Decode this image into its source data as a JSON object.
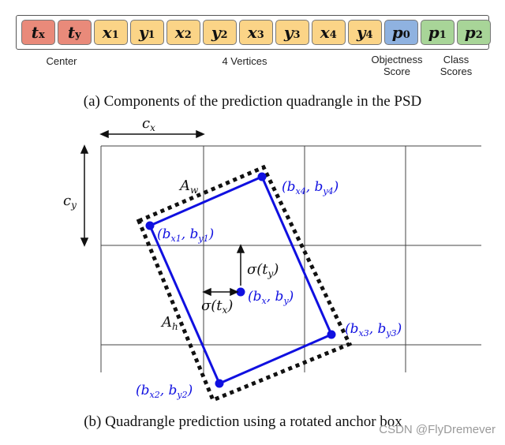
{
  "cells": [
    {
      "sym": "t",
      "sub": "x",
      "group": "center"
    },
    {
      "sym": "t",
      "sub": "y",
      "group": "center"
    },
    {
      "sym": "x",
      "sub": "1",
      "group": "vertex"
    },
    {
      "sym": "y",
      "sub": "1",
      "group": "vertex"
    },
    {
      "sym": "x",
      "sub": "2",
      "group": "vertex"
    },
    {
      "sym": "y",
      "sub": "2",
      "group": "vertex"
    },
    {
      "sym": "x",
      "sub": "3",
      "group": "vertex"
    },
    {
      "sym": "y",
      "sub": "3",
      "group": "vertex"
    },
    {
      "sym": "x",
      "sub": "4",
      "group": "vertex"
    },
    {
      "sym": "y",
      "sub": "4",
      "group": "vertex"
    },
    {
      "sym": "p",
      "sub": "0",
      "group": "objectness"
    },
    {
      "sym": "p",
      "sub": "1",
      "group": "class"
    },
    {
      "sym": "p",
      "sub": "2",
      "group": "class"
    }
  ],
  "group_labels": {
    "center": "Center",
    "vertices": "4 Vertices",
    "objectness_line1": "Objectness",
    "objectness_line2": "Score",
    "class_line1": "Class",
    "class_line2": "Scores"
  },
  "captions": {
    "a": "(a) Components of the prediction quadrangle in the PSD",
    "b": "(b) Quadrangle prediction using a rotated anchor box"
  },
  "diagram_labels": {
    "cx": "c",
    "cx_sub": "x",
    "cy": "c",
    "cy_sub": "y",
    "aw": "A",
    "aw_sub": "w",
    "ah": "A",
    "ah_sub": "h",
    "sigma_ty": "σ(t",
    "sigma_ty_sub": "y",
    "sigma_tx": "σ(t",
    "sigma_tx_sub": "x",
    "center_pt": "(b",
    "center_pt_sub1": "x",
    "center_pt_mid": ", b",
    "center_pt_sub2": "y",
    "v1_sub1": "x1",
    "v1_sub2": "y1",
    "v2_sub1": "x2",
    "v2_sub2": "y2",
    "v3_sub1": "x3",
    "v3_sub2": "y3",
    "v4_sub1": "x4",
    "v4_sub2": "y4"
  },
  "colors": {
    "center": "#e98a7a",
    "vertex": "#fbd487",
    "objectness": "#8fb2e0",
    "class": "#a8d598",
    "quad": "#1010e0"
  },
  "watermark": "CSDN @FlyDremever"
}
